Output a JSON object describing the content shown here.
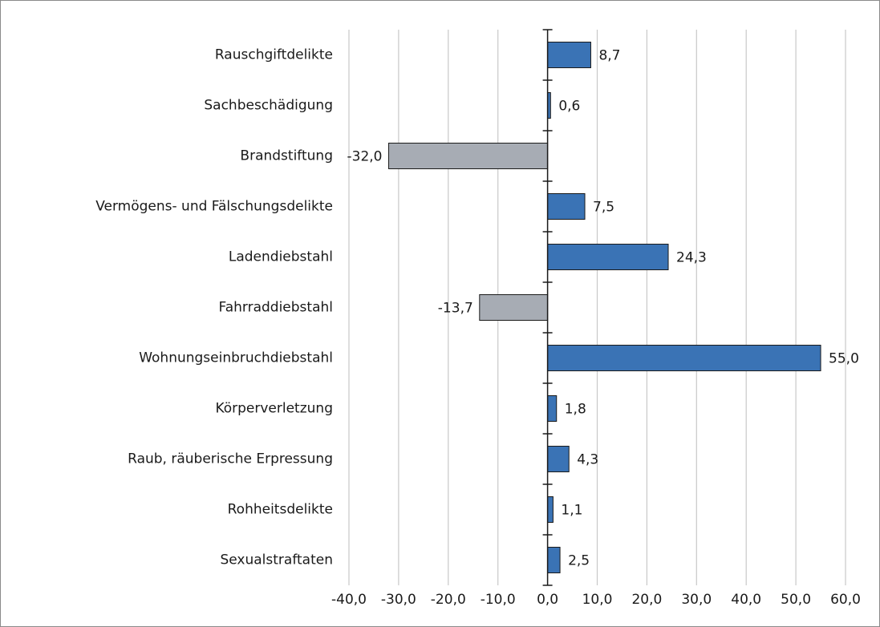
{
  "chart_data": {
    "type": "barh",
    "categories": [
      "Rauschgiftdelikte",
      "Sachbeschädigung",
      "Brandstiftung",
      "Vermögens- und Fälschungsdelikte",
      "Ladendiebstahl",
      "Fahrraddiebstahl",
      "Wohnungseinbruchdiebstahl",
      "Körperverletzung",
      "Raub, räuberische Erpressung",
      "Rohheitsdelikte",
      "Sexualstraftaten"
    ],
    "values": [
      8.7,
      0.6,
      -32.0,
      7.5,
      24.3,
      -13.7,
      55.0,
      1.8,
      4.3,
      1.1,
      2.5
    ],
    "value_labels": [
      "8,7",
      "0,6",
      "-32,0",
      "7,5",
      "24,3",
      "-13,7",
      "55,0",
      "1,8",
      "4,3",
      "1,1",
      "2,5"
    ],
    "colors": [
      "#3a73b5",
      "#3a73b5",
      "#a7acb4",
      "#3a73b5",
      "#3a73b5",
      "#a7acb4",
      "#3a73b5",
      "#3a73b5",
      "#3a73b5",
      "#3a73b5",
      "#3a73b5"
    ],
    "xlim": [
      -40,
      60
    ],
    "xticks": [
      {
        "value": -40,
        "label": "-40,0"
      },
      {
        "value": -30,
        "label": "-30,0"
      },
      {
        "value": -20,
        "label": "-20,0"
      },
      {
        "value": -10,
        "label": "-10,0"
      },
      {
        "value": 0,
        "label": "0,0"
      },
      {
        "value": 10,
        "label": "10,0"
      },
      {
        "value": 20,
        "label": "20,0"
      },
      {
        "value": 30,
        "label": "30,0"
      },
      {
        "value": 40,
        "label": "40,0"
      },
      {
        "value": 50,
        "label": "50,0"
      },
      {
        "value": 60,
        "label": "60,0"
      }
    ],
    "grid": true
  }
}
